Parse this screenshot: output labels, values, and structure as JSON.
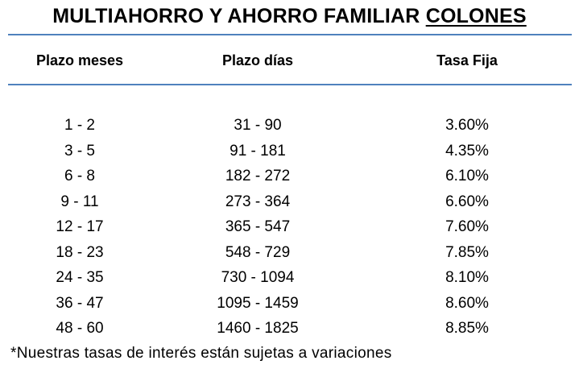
{
  "title": {
    "main": "MULTIAHORRO Y AHORRO FAMILIAR",
    "currency": "COLONES"
  },
  "table": {
    "headers": [
      "Plazo meses",
      "Plazo días",
      "Tasa Fija"
    ],
    "rows": [
      [
        "1 - 2",
        "31 - 90",
        "3.60%"
      ],
      [
        "3 - 5",
        "91 - 181",
        "4.35%"
      ],
      [
        "6 - 8",
        "182 - 272",
        "6.10%"
      ],
      [
        "9 - 11",
        "273 - 364",
        "6.60%"
      ],
      [
        "12 - 17",
        "365 - 547",
        "7.60%"
      ],
      [
        "18 - 23",
        "548 - 729",
        "7.85%"
      ],
      [
        "24 - 35",
        "730 - 1094",
        "8.10%"
      ],
      [
        "36 - 47",
        "1095 - 1459",
        "8.60%"
      ],
      [
        "48 - 60",
        "1460 - 1825",
        "8.85%"
      ]
    ]
  },
  "footnote": "*Nuestras tasas de interés están sujetas a variaciones",
  "colors": {
    "rule": "#4f81bd",
    "text": "#000000",
    "background": "#ffffff"
  }
}
